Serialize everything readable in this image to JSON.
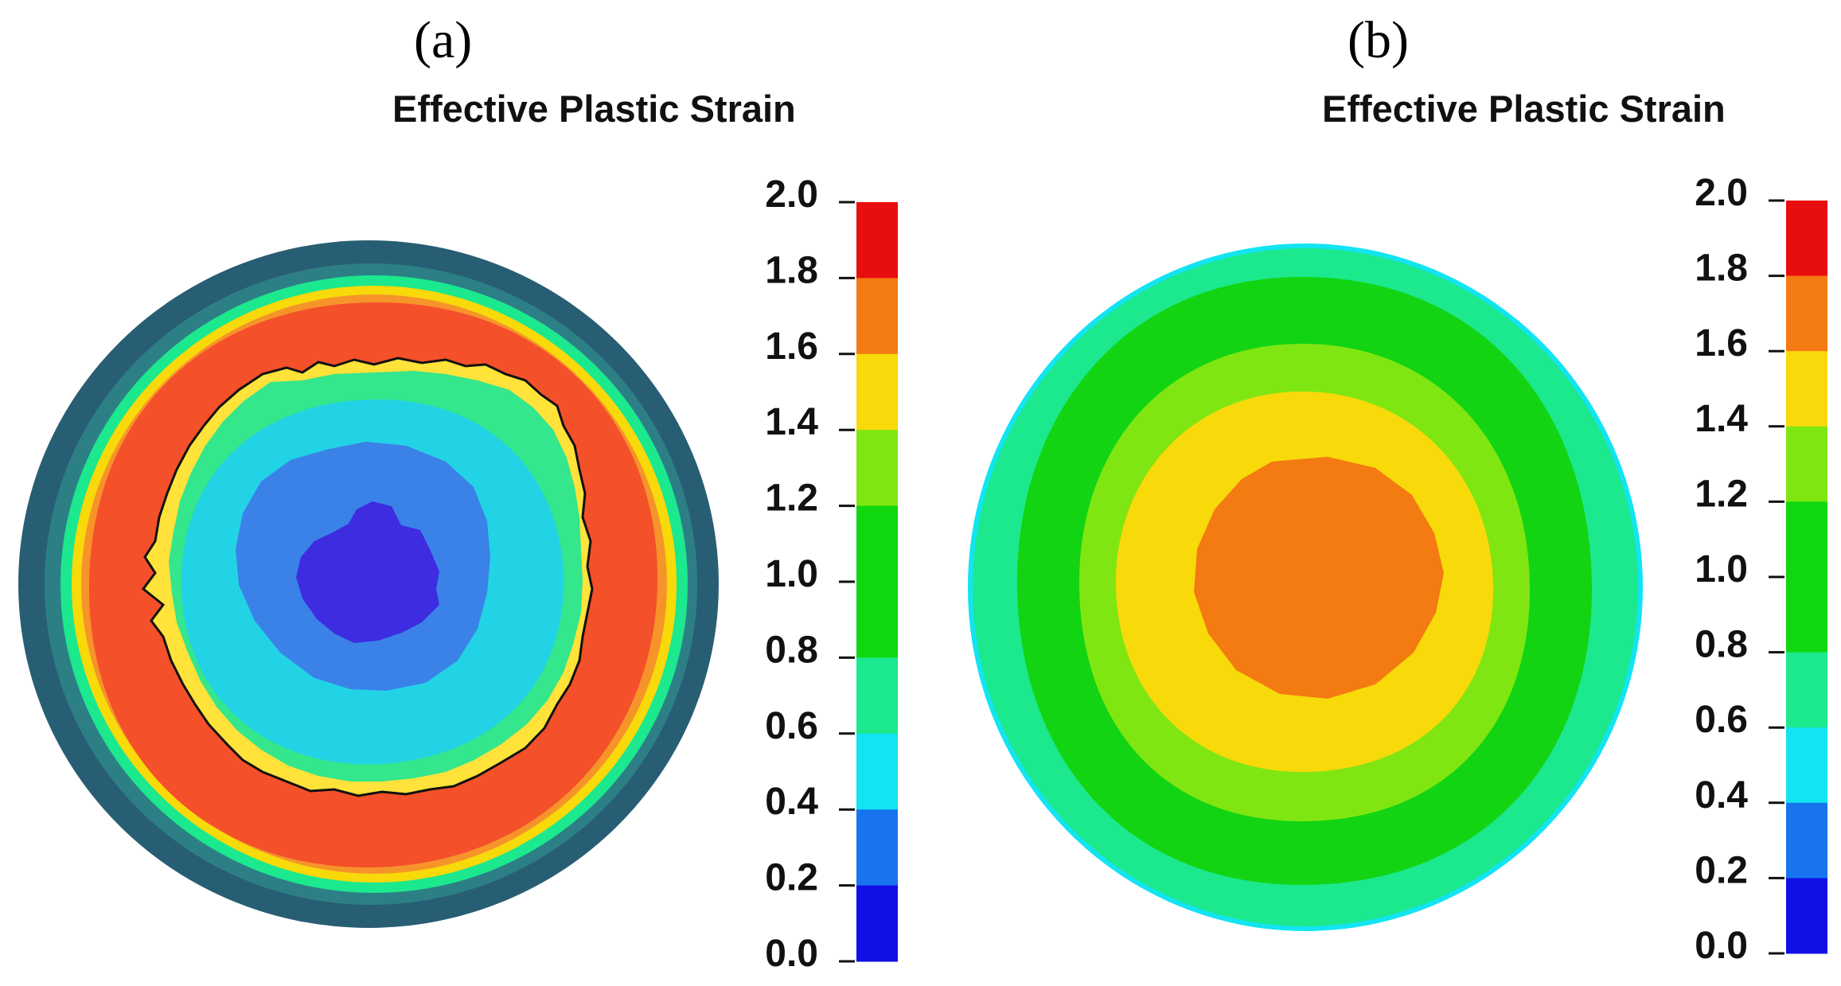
{
  "panels": [
    {
      "label": "(a)",
      "title": "Effective Plastic Strain",
      "colorbar": {
        "ticks": [
          "2.0",
          "1.8",
          "1.6",
          "1.4",
          "1.2",
          "1.0",
          "0.8",
          "0.6",
          "0.4",
          "0.2",
          "0.0"
        ],
        "colors": [
          "#e80e0e",
          "#f47a12",
          "#f8d90a",
          "#80e612",
          "#10d810",
          "#10d810",
          "#1ce88e",
          "#12e4f2",
          "#1874ee",
          "#1010e6"
        ]
      },
      "contour": {
        "bands": [
          {
            "color": "#285e73"
          },
          {
            "color": "#2d7f86"
          },
          {
            "color": "#1ce88e"
          },
          {
            "color": "#f8d90a"
          },
          {
            "color": "#f4502a"
          },
          {
            "color": "#22d3e5"
          },
          {
            "color": "#3a82e8"
          },
          {
            "color": "#3d2ce0"
          }
        ]
      }
    },
    {
      "label": "(b)",
      "title": "Effective Plastic Strain",
      "colorbar": {
        "ticks": [
          "2.0",
          "1.8",
          "1.6",
          "1.4",
          "1.2",
          "1.0",
          "0.8",
          "0.6",
          "0.4",
          "0.2",
          "0.0"
        ],
        "colors": [
          "#e80e0e",
          "#f47a12",
          "#f8d90a",
          "#80e612",
          "#10d810",
          "#10d810",
          "#1ce88e",
          "#12e4f2",
          "#1874ee",
          "#1010e6"
        ]
      },
      "contour": {
        "bands": [
          {
            "color": "#12e4f2"
          },
          {
            "color": "#1ce88e"
          },
          {
            "color": "#12d412"
          },
          {
            "color": "#80e612"
          },
          {
            "color": "#f8d90a"
          },
          {
            "color": "#f47a12"
          }
        ]
      }
    }
  ]
}
